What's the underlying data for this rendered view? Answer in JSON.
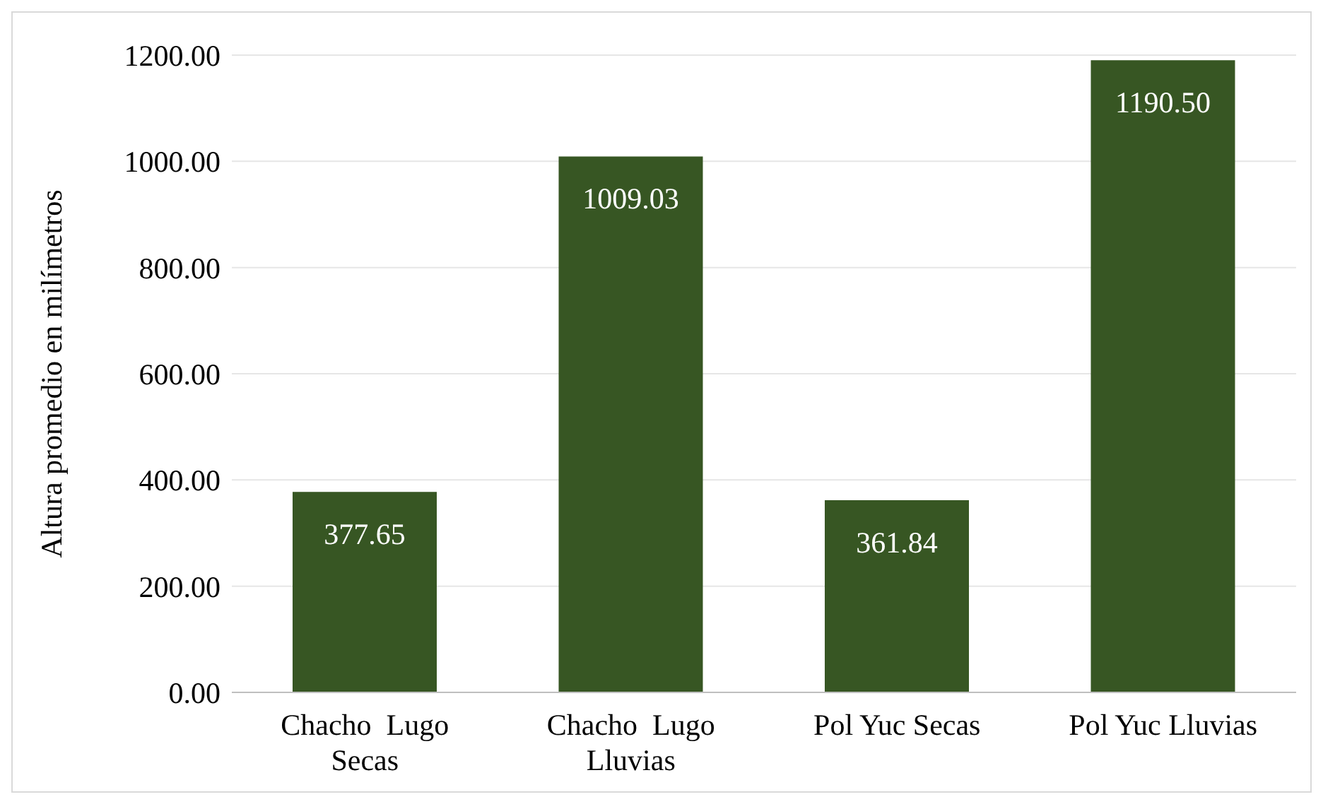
{
  "chart_data": {
    "type": "bar",
    "ylabel": "Altura promedio en milímetros",
    "categories": [
      "Chacho  Lugo Secas",
      "Chacho  Lugo Lluvias",
      "Pol Yuc Secas",
      "Pol Yuc Lluvias"
    ],
    "values": [
      377.65,
      1009.03,
      361.84,
      1190.5
    ],
    "value_labels": [
      "377.65",
      "1009.03",
      "361.84",
      "1190.50"
    ],
    "color": "#375623",
    "ylim": [
      0,
      1200
    ],
    "yticks": [
      {
        "value": 0,
        "label": "0.00"
      },
      {
        "value": 200,
        "label": "200.00"
      },
      {
        "value": 400,
        "label": "400.00"
      },
      {
        "value": 600,
        "label": "600.00"
      },
      {
        "value": 800,
        "label": "800.00"
      },
      {
        "value": 1000,
        "label": "1000.00"
      },
      {
        "value": 1200,
        "label": "1200.00"
      }
    ],
    "grid": "y"
  }
}
